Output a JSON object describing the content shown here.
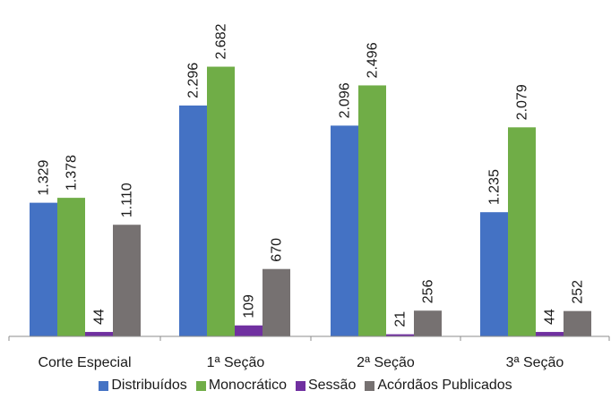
{
  "colors": {
    "Distribuídos": "#4472c4",
    "Monocrático": "#70ad47",
    "Sessão": "#7030a0",
    "Acórdãos Publicados": "#767171"
  },
  "chart_data": {
    "type": "bar",
    "title": "",
    "xlabel": "",
    "ylabel": "",
    "ylim": [
      0,
      2900
    ],
    "grid": false,
    "legend_position": "bottom",
    "categories": [
      "Corte Especial",
      "1ª Seção",
      "2ª Seção",
      "3ª Seção"
    ],
    "series": [
      {
        "name": "Distribuídos",
        "values": [
          1329,
          2296,
          2096,
          1235
        ],
        "labels": [
          "1.329",
          "2.296",
          "2.096",
          "1.235"
        ]
      },
      {
        "name": "Monocrático",
        "values": [
          1378,
          2682,
          2496,
          2079
        ],
        "labels": [
          "1.378",
          "2.682",
          "2.496",
          "2.079"
        ]
      },
      {
        "name": "Sessão",
        "values": [
          44,
          109,
          21,
          44
        ],
        "labels": [
          "44",
          "109",
          "21",
          "44"
        ]
      },
      {
        "name": "Acórdãos Publicados",
        "values": [
          1110,
          670,
          256,
          252
        ],
        "labels": [
          "1.110",
          "670",
          "256",
          "252"
        ]
      }
    ]
  }
}
